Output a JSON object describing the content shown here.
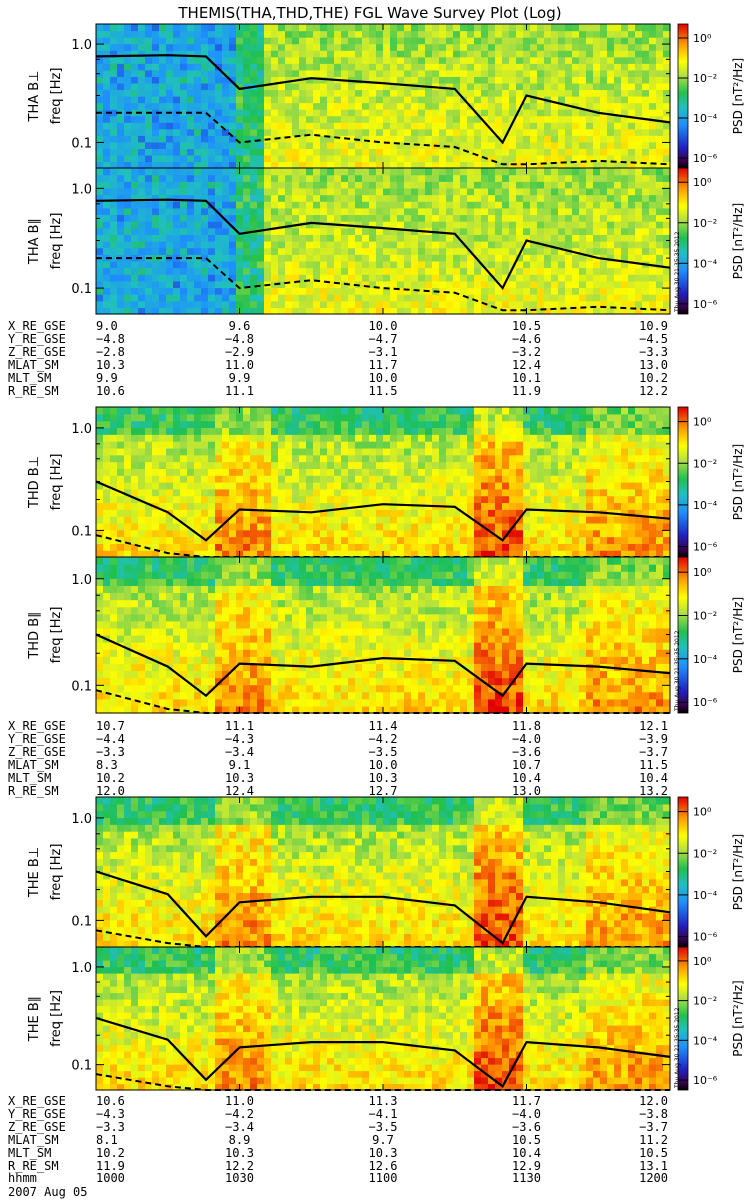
{
  "title": "THEMIS(THA,THD,THE) FGL Wave Survey Plot (Log)",
  "freq_axis_label": "freq [Hz]",
  "freq_ticks": [
    "0.1",
    "1.0"
  ],
  "colorbar": {
    "label": "PSD [nT²/Hz]",
    "ticks": [
      "10⁻⁶",
      "10⁻⁴",
      "10⁻²",
      "10⁰"
    ]
  },
  "stamp": "Thu Aug 30 21:35:35 2012",
  "date_label": "2007 Aug 05",
  "time_axis": {
    "label": "hhmm",
    "ticks": [
      "1000",
      "1030",
      "1100",
      "1130",
      "1200"
    ]
  },
  "ephemeris_labels": [
    "X_RE_GSE",
    "Y_RE_GSE",
    "Z_RE_GSE",
    "MLAT_SM",
    "MLT_SM",
    "R_RE_SM"
  ],
  "groups": [
    {
      "probe": "THA",
      "panels": [
        {
          "ylabel": "THA B⊥",
          "show_stamp": false
        },
        {
          "ylabel": "THA B∥",
          "show_stamp": true
        }
      ],
      "ephemeris": [
        [
          "9.0",
          "9.6",
          "10.0",
          "10.5",
          "10.9"
        ],
        [
          "−4.8",
          "−4.8",
          "−4.7",
          "−4.6",
          "−4.5"
        ],
        [
          "−2.8",
          "−2.9",
          "−3.1",
          "−3.2",
          "−3.3"
        ],
        [
          "10.3",
          "11.0",
          "11.7",
          "12.4",
          "13.0"
        ],
        [
          "9.9",
          "9.9",
          "10.0",
          "10.1",
          "10.2"
        ],
        [
          "10.6",
          "11.1",
          "11.5",
          "11.9",
          "12.2"
        ]
      ]
    },
    {
      "probe": "THD",
      "panels": [
        {
          "ylabel": "THD B⊥",
          "show_stamp": false
        },
        {
          "ylabel": "THD B∥",
          "show_stamp": true
        }
      ],
      "ephemeris": [
        [
          "10.7",
          "11.1",
          "11.4",
          "11.8",
          "12.1"
        ],
        [
          "−4.4",
          "−4.3",
          "−4.2",
          "−4.0",
          "−3.9"
        ],
        [
          "−3.3",
          "−3.4",
          "−3.5",
          "−3.6",
          "−3.7"
        ],
        [
          "8.3",
          "9.1",
          "10.0",
          "10.7",
          "11.5"
        ],
        [
          "10.2",
          "10.3",
          "10.3",
          "10.4",
          "10.4"
        ],
        [
          "12.0",
          "12.4",
          "12.7",
          "13.0",
          "13.2"
        ]
      ]
    },
    {
      "probe": "THE",
      "panels": [
        {
          "ylabel": "THE B⊥",
          "show_stamp": false
        },
        {
          "ylabel": "THE B∥",
          "show_stamp": true
        }
      ],
      "ephemeris": [
        [
          "10.6",
          "11.0",
          "11.3",
          "11.7",
          "12.0"
        ],
        [
          "−4.3",
          "−4.2",
          "−4.1",
          "−4.0",
          "−3.8"
        ],
        [
          "−3.3",
          "−3.4",
          "−3.5",
          "−3.6",
          "−3.7"
        ],
        [
          "8.1",
          "8.9",
          "9.7",
          "10.5",
          "11.2"
        ],
        [
          "10.2",
          "10.3",
          "10.3",
          "10.4",
          "10.5"
        ],
        [
          "11.9",
          "12.2",
          "12.6",
          "12.9",
          "13.1"
        ]
      ]
    }
  ],
  "chart_data": {
    "type": "heatmap",
    "title": "THEMIS(THA,THD,THE) FGL Wave Survey Plot (Log)",
    "xlabel": "hhmm (2007 Aug 05)",
    "ylabel": "freq [Hz]",
    "x_range": [
      "1000",
      "1200"
    ],
    "y_range_hz": [
      0.055,
      1.6
    ],
    "y_scale": "log",
    "color_scale": "log PSD [nT^2/Hz], 1e-6 to 1e0",
    "panels": [
      "THA B⊥",
      "THA B∥",
      "THD B⊥",
      "THD B∥",
      "THE B⊥",
      "THE B∥"
    ],
    "solid_line_hz": {
      "time_hhmm": [
        "1000",
        "1015",
        "1023",
        "1030",
        "1045",
        "1100",
        "1115",
        "1125",
        "1130",
        "1145",
        "1200"
      ],
      "THA": [
        0.75,
        0.77,
        0.75,
        0.35,
        0.45,
        0.4,
        0.35,
        0.1,
        0.3,
        0.2,
        0.16
      ],
      "THD": [
        0.3,
        0.15,
        0.08,
        0.16,
        0.15,
        0.18,
        0.17,
        0.08,
        0.16,
        0.15,
        0.13
      ],
      "THE": [
        0.3,
        0.18,
        0.07,
        0.15,
        0.17,
        0.17,
        0.14,
        0.06,
        0.17,
        0.15,
        0.12
      ]
    },
    "dashed_line_hz": {
      "time_hhmm": [
        "1000",
        "1015",
        "1023",
        "1030",
        "1045",
        "1100",
        "1115",
        "1125",
        "1130",
        "1145",
        "1200"
      ],
      "THA": [
        0.2,
        0.2,
        0.2,
        0.1,
        0.12,
        0.1,
        0.09,
        0.06,
        0.06,
        0.065,
        0.06
      ],
      "THD": [
        0.09,
        0.06,
        0.055,
        0.055,
        0.055,
        0.055,
        0.055,
        0.055,
        0.055,
        0.055,
        0.055
      ],
      "THE": [
        0.08,
        0.06,
        0.055,
        0.055,
        0.055,
        0.055,
        0.055,
        0.055,
        0.055,
        0.055,
        0.055
      ]
    }
  }
}
